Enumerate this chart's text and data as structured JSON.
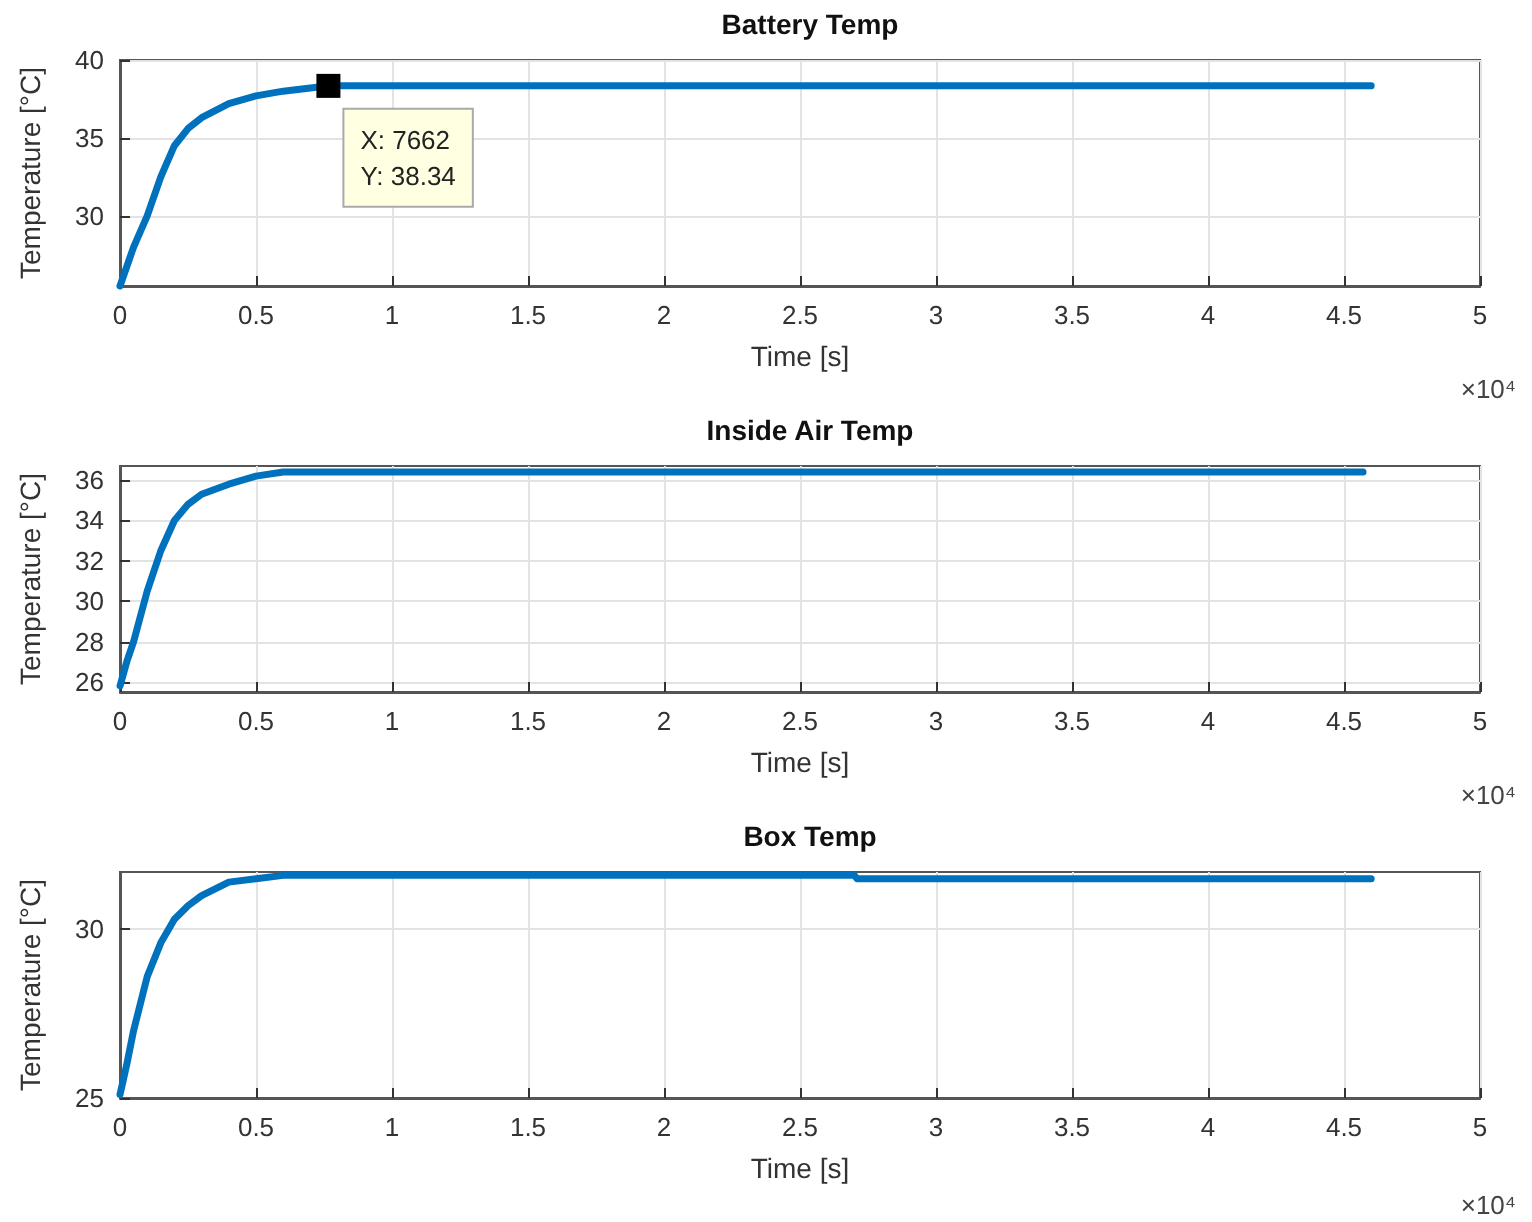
{
  "chart_data": [
    {
      "type": "line",
      "title": "Battery Temp",
      "xlabel": "Time [s]",
      "ylabel": "Temperature [°C]",
      "x": [
        0,
        0.05,
        0.1,
        0.15,
        0.2,
        0.25,
        0.3,
        0.4,
        0.5,
        0.6,
        0.7,
        0.7662,
        1,
        2,
        3,
        4,
        4.6
      ],
      "series": [
        {
          "color": "#0072bd",
          "values": [
            25.5,
            28,
            30,
            32.5,
            34.5,
            35.6,
            36.3,
            37.2,
            37.7,
            38.0,
            38.2,
            38.34,
            38.34,
            38.34,
            38.34,
            38.34,
            38.34
          ]
        }
      ],
      "xlim": [
        0,
        5
      ],
      "xticks": [
        0,
        0.5,
        1,
        1.5,
        2,
        2.5,
        3,
        3.5,
        4,
        4.5,
        5
      ],
      "ylim": [
        25.5,
        40
      ],
      "yticks": [
        30,
        35,
        40
      ],
      "grid": true,
      "marker": "none",
      "line_style": "solid",
      "annotations": [
        {
          "text": "X: 7662\nY: 38.34",
          "x": 0.7662,
          "y": 38.34
        },
        "×10⁴"
      ]
    },
    {
      "type": "line",
      "title": "Inside Air Temp",
      "xlabel": "Time [s]",
      "ylabel": "Temperature [°C]",
      "x": [
        0,
        0.025,
        0.05,
        0.1,
        0.15,
        0.2,
        0.25,
        0.3,
        0.4,
        0.5,
        0.6,
        1,
        2,
        3,
        4,
        4.57
      ],
      "series": [
        {
          "color": "#0072bd",
          "values": [
            25.8,
            27,
            28,
            30.5,
            32.5,
            34,
            34.8,
            35.3,
            35.8,
            36.2,
            36.4,
            36.4,
            36.4,
            36.4,
            36.4,
            36.4
          ]
        }
      ],
      "xlim": [
        0,
        5
      ],
      "xticks": [
        0,
        0.5,
        1,
        1.5,
        2,
        2.5,
        3,
        3.5,
        4,
        4.5,
        5
      ],
      "ylim": [
        25.5,
        36.7
      ],
      "yticks": [
        26,
        28,
        30,
        32,
        34,
        36
      ],
      "grid": true,
      "marker": "none",
      "line_style": "solid",
      "annotations": [
        "×10⁴"
      ]
    },
    {
      "type": "line",
      "title": "Box Temp",
      "xlabel": "Time [s]",
      "ylabel": "Temperature [°C]",
      "x": [
        0,
        0.025,
        0.05,
        0.1,
        0.15,
        0.2,
        0.25,
        0.3,
        0.4,
        0.5,
        0.6,
        1,
        2,
        2.7,
        2.71,
        4,
        4.6
      ],
      "series": [
        {
          "color": "#0072bd",
          "values": [
            25.1,
            26,
            27,
            28.6,
            29.6,
            30.3,
            30.7,
            31.0,
            31.4,
            31.5,
            31.6,
            31.6,
            31.6,
            31.6,
            31.5,
            31.5,
            31.5
          ]
        }
      ],
      "xlim": [
        0,
        5
      ],
      "xticks": [
        0,
        0.5,
        1,
        1.5,
        2,
        2.5,
        3,
        3.5,
        4,
        4.5,
        5
      ],
      "ylim": [
        25,
        31.7
      ],
      "yticks": [
        25,
        30
      ],
      "grid": true,
      "marker": "none",
      "line_style": "solid",
      "annotations": [
        "×10⁴"
      ]
    }
  ]
}
